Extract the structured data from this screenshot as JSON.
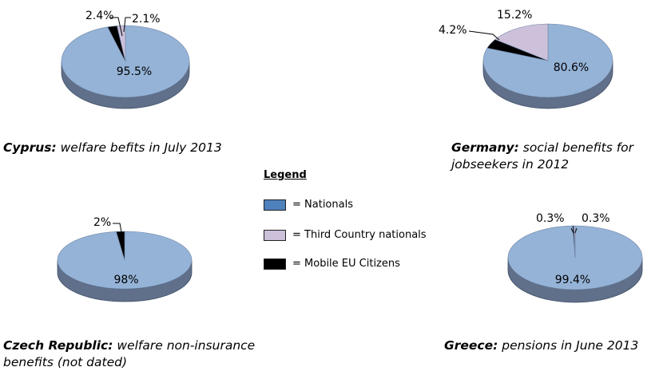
{
  "colors": {
    "nationals": "#95b3d7",
    "nationals_side": "#60708a",
    "nationals_edge": "#3f4e66",
    "third_country": "#ccc0da",
    "third_country_side": "#8a7f99",
    "mobile_eu": "#000000",
    "legend_nationals": "#4f81bd"
  },
  "legend": {
    "title": "Legend",
    "items": [
      {
        "label": "= Nationals",
        "color": "#4f81bd"
      },
      {
        "label": "= Third Country nationals",
        "color": "#ccc0da"
      },
      {
        "label": "= Mobile EU Citizens",
        "color": "#000000"
      }
    ]
  },
  "chart_data": [
    {
      "type": "pie",
      "title": "Cyprus:",
      "subtitle": "welfare befits in July 2013",
      "slices": [
        {
          "name": "Nationals",
          "value": 95.5,
          "label": "95.5%"
        },
        {
          "name": "Mobile EU Citizens",
          "value": 2.4,
          "label": "2.4%"
        },
        {
          "name": "Third Country nationals",
          "value": 2.1,
          "label": "2.1%"
        }
      ]
    },
    {
      "type": "pie",
      "title": "Germany:",
      "subtitle": "social benefits for jobseekers in 2012",
      "slices": [
        {
          "name": "Nationals",
          "value": 80.6,
          "label": "80.6%"
        },
        {
          "name": "Mobile EU Citizens",
          "value": 4.2,
          "label": "4.2%"
        },
        {
          "name": "Third Country nationals",
          "value": 15.2,
          "label": "15.2%"
        }
      ]
    },
    {
      "type": "pie",
      "title": "Czech Republic:",
      "subtitle": "welfare non-insurance benefits (not dated)",
      "slices": [
        {
          "name": "Nationals",
          "value": 98,
          "label": "98%"
        },
        {
          "name": "Mobile EU Citizens",
          "value": 2,
          "label": "2%"
        }
      ]
    },
    {
      "type": "pie",
      "title": "Greece:",
      "subtitle": "pensions in June 2013",
      "slices": [
        {
          "name": "Nationals",
          "value": 99.4,
          "label": "99.4%"
        },
        {
          "name": "Mobile EU Citizens",
          "value": 0.3,
          "label": "0.3%"
        },
        {
          "name": "Third Country nationals",
          "value": 0.3,
          "label": "0.3%"
        }
      ]
    }
  ]
}
